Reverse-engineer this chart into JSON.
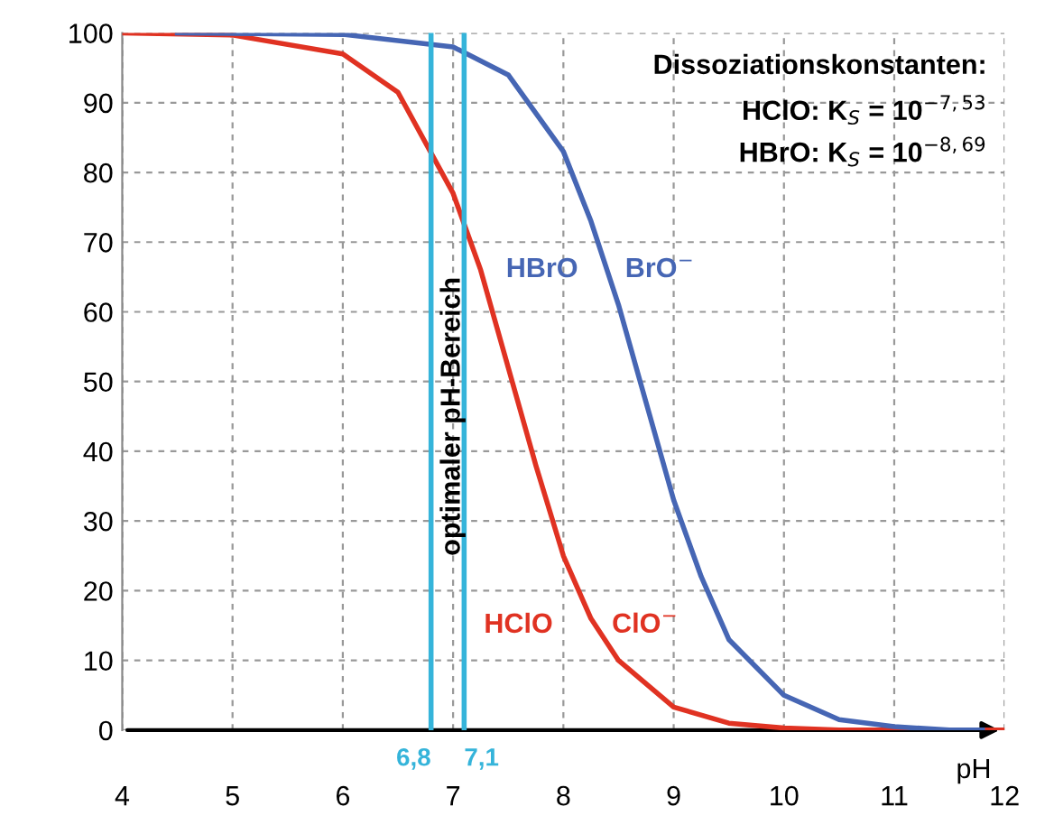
{
  "chart_data": {
    "type": "line",
    "xlabel": "pH",
    "xlim": [
      4,
      12
    ],
    "ylim": [
      0,
      100
    ],
    "xticks": [
      4,
      5,
      6,
      7,
      8,
      9,
      10,
      11,
      12
    ],
    "yticks": [
      0,
      10,
      20,
      30,
      40,
      50,
      60,
      70,
      80,
      90,
      100
    ],
    "grid": true,
    "line_style": "solid",
    "marker": "none",
    "series": [
      {
        "color": "#e03222",
        "x": [
          4,
          5,
          6,
          6.5,
          7,
          7.25,
          7.5,
          7.75,
          8,
          8.25,
          8.5,
          9,
          9.5,
          10,
          10.5,
          11,
          12
        ],
        "values": [
          100,
          99.7,
          97,
          91.5,
          77,
          66,
          52,
          38,
          25,
          16,
          10,
          3.3,
          1,
          0.3,
          0,
          0,
          0
        ]
      },
      {
        "color": "#4666b4",
        "x": [
          4.5,
          6,
          7,
          7.5,
          8,
          8.25,
          8.5,
          8.75,
          9,
          9.25,
          9.5,
          10,
          10.5,
          11,
          11.5,
          11.8
        ],
        "values": [
          100,
          99.8,
          98,
          94,
          83,
          73,
          61,
          47,
          33,
          22,
          13,
          5,
          1.5,
          0.5,
          0,
          0
        ]
      }
    ],
    "ref_lines": [
      {
        "axis": "x",
        "value": 6.8,
        "label": "6,8",
        "color": "#35b4da"
      },
      {
        "axis": "x",
        "value": 7.1,
        "label": "7,1",
        "color": "#35b4da"
      }
    ],
    "annotations": [
      "HBrO",
      "BrO$^{−}$",
      "HClO",
      "ClO$^{−}$",
      "optimaler pH-Bereich",
      "Dissoziationskonstanten:",
      "HClO: K$_{S}$ = 10$^{−7,53}$",
      "HBrO: K$_{S}$ = 10$^{−8,69}$"
    ]
  }
}
